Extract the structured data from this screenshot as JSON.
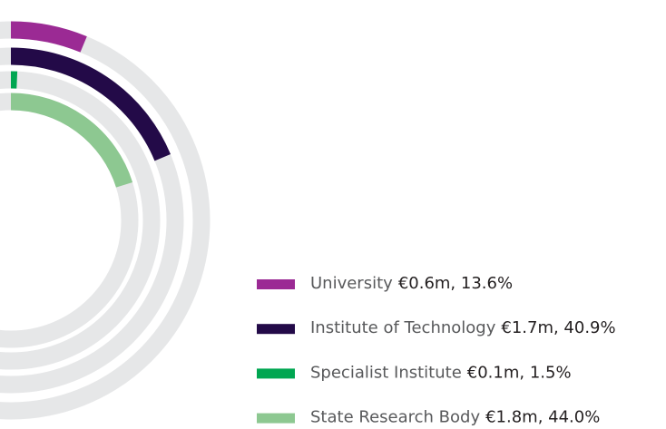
{
  "chart_data": {
    "type": "radial_bar",
    "categories": [
      "University",
      "Institute of Technology",
      "Specialist Institute",
      "State Research Body"
    ],
    "values": [
      13.6,
      40.9,
      1.5,
      44.0
    ],
    "value_labels": [
      "€0.6m, 13.6%",
      "€1.7m, 40.9%",
      "€0.1m, 1.5%",
      "€1.8m, 44.0%"
    ],
    "colors": [
      "#9b2a94",
      "#230a48",
      "#00a651",
      "#8dc891"
    ],
    "track_color": "#e6e7e8"
  }
}
